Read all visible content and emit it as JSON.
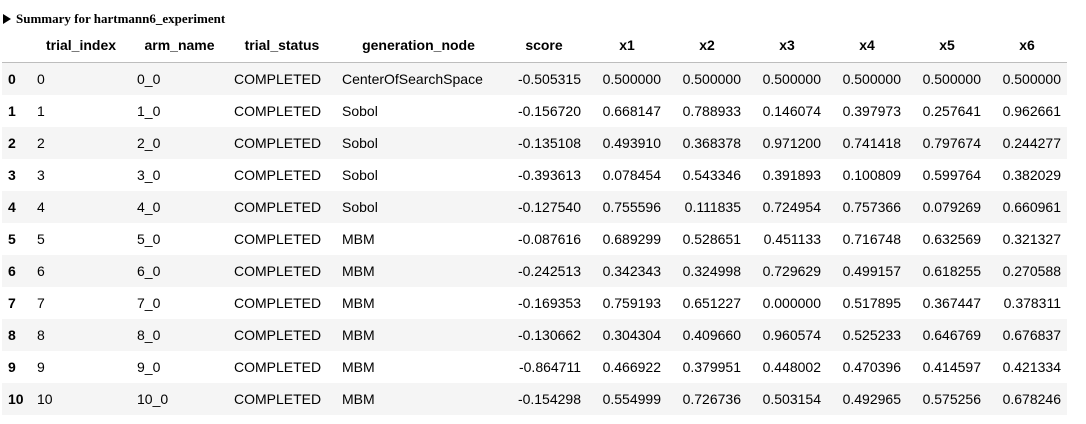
{
  "summary": {
    "title": "Summary for hartmann6_experiment",
    "expanded": true,
    "columns": [
      "",
      "trial_index",
      "arm_name",
      "trial_status",
      "generation_node",
      "score",
      "x1",
      "x2",
      "x3",
      "x4",
      "x5",
      "x6"
    ],
    "rows": [
      {
        "index": "0",
        "trial_index": "0",
        "arm_name": "0_0",
        "trial_status": "COMPLETED",
        "generation_node": "CenterOfSearchSpace",
        "score": "-0.505315",
        "x1": "0.500000",
        "x2": "0.500000",
        "x3": "0.500000",
        "x4": "0.500000",
        "x5": "0.500000",
        "x6": "0.500000"
      },
      {
        "index": "1",
        "trial_index": "1",
        "arm_name": "1_0",
        "trial_status": "COMPLETED",
        "generation_node": "Sobol",
        "score": "-0.156720",
        "x1": "0.668147",
        "x2": "0.788933",
        "x3": "0.146074",
        "x4": "0.397973",
        "x5": "0.257641",
        "x6": "0.962661"
      },
      {
        "index": "2",
        "trial_index": "2",
        "arm_name": "2_0",
        "trial_status": "COMPLETED",
        "generation_node": "Sobol",
        "score": "-0.135108",
        "x1": "0.493910",
        "x2": "0.368378",
        "x3": "0.971200",
        "x4": "0.741418",
        "x5": "0.797674",
        "x6": "0.244277"
      },
      {
        "index": "3",
        "trial_index": "3",
        "arm_name": "3_0",
        "trial_status": "COMPLETED",
        "generation_node": "Sobol",
        "score": "-0.393613",
        "x1": "0.078454",
        "x2": "0.543346",
        "x3": "0.391893",
        "x4": "0.100809",
        "x5": "0.599764",
        "x6": "0.382029"
      },
      {
        "index": "4",
        "trial_index": "4",
        "arm_name": "4_0",
        "trial_status": "COMPLETED",
        "generation_node": "Sobol",
        "score": "-0.127540",
        "x1": "0.755596",
        "x2": "0.111835",
        "x3": "0.724954",
        "x4": "0.757366",
        "x5": "0.079269",
        "x6": "0.660961"
      },
      {
        "index": "5",
        "trial_index": "5",
        "arm_name": "5_0",
        "trial_status": "COMPLETED",
        "generation_node": "MBM",
        "score": "-0.087616",
        "x1": "0.689299",
        "x2": "0.528651",
        "x3": "0.451133",
        "x4": "0.716748",
        "x5": "0.632569",
        "x6": "0.321327"
      },
      {
        "index": "6",
        "trial_index": "6",
        "arm_name": "6_0",
        "trial_status": "COMPLETED",
        "generation_node": "MBM",
        "score": "-0.242513",
        "x1": "0.342343",
        "x2": "0.324998",
        "x3": "0.729629",
        "x4": "0.499157",
        "x5": "0.618255",
        "x6": "0.270588"
      },
      {
        "index": "7",
        "trial_index": "7",
        "arm_name": "7_0",
        "trial_status": "COMPLETED",
        "generation_node": "MBM",
        "score": "-0.169353",
        "x1": "0.759193",
        "x2": "0.651227",
        "x3": "0.000000",
        "x4": "0.517895",
        "x5": "0.367447",
        "x6": "0.378311"
      },
      {
        "index": "8",
        "trial_index": "8",
        "arm_name": "8_0",
        "trial_status": "COMPLETED",
        "generation_node": "MBM",
        "score": "-0.130662",
        "x1": "0.304304",
        "x2": "0.409660",
        "x3": "0.960574",
        "x4": "0.525233",
        "x5": "0.646769",
        "x6": "0.676837"
      },
      {
        "index": "9",
        "trial_index": "9",
        "arm_name": "9_0",
        "trial_status": "COMPLETED",
        "generation_node": "MBM",
        "score": "-0.864711",
        "x1": "0.466922",
        "x2": "0.379951",
        "x3": "0.448002",
        "x4": "0.470396",
        "x5": "0.414597",
        "x6": "0.421334"
      },
      {
        "index": "10",
        "trial_index": "10",
        "arm_name": "10_0",
        "trial_status": "COMPLETED",
        "generation_node": "MBM",
        "score": "-0.154298",
        "x1": "0.554999",
        "x2": "0.726736",
        "x3": "0.503154",
        "x4": "0.492965",
        "x5": "0.575256",
        "x6": "0.678246"
      }
    ]
  }
}
